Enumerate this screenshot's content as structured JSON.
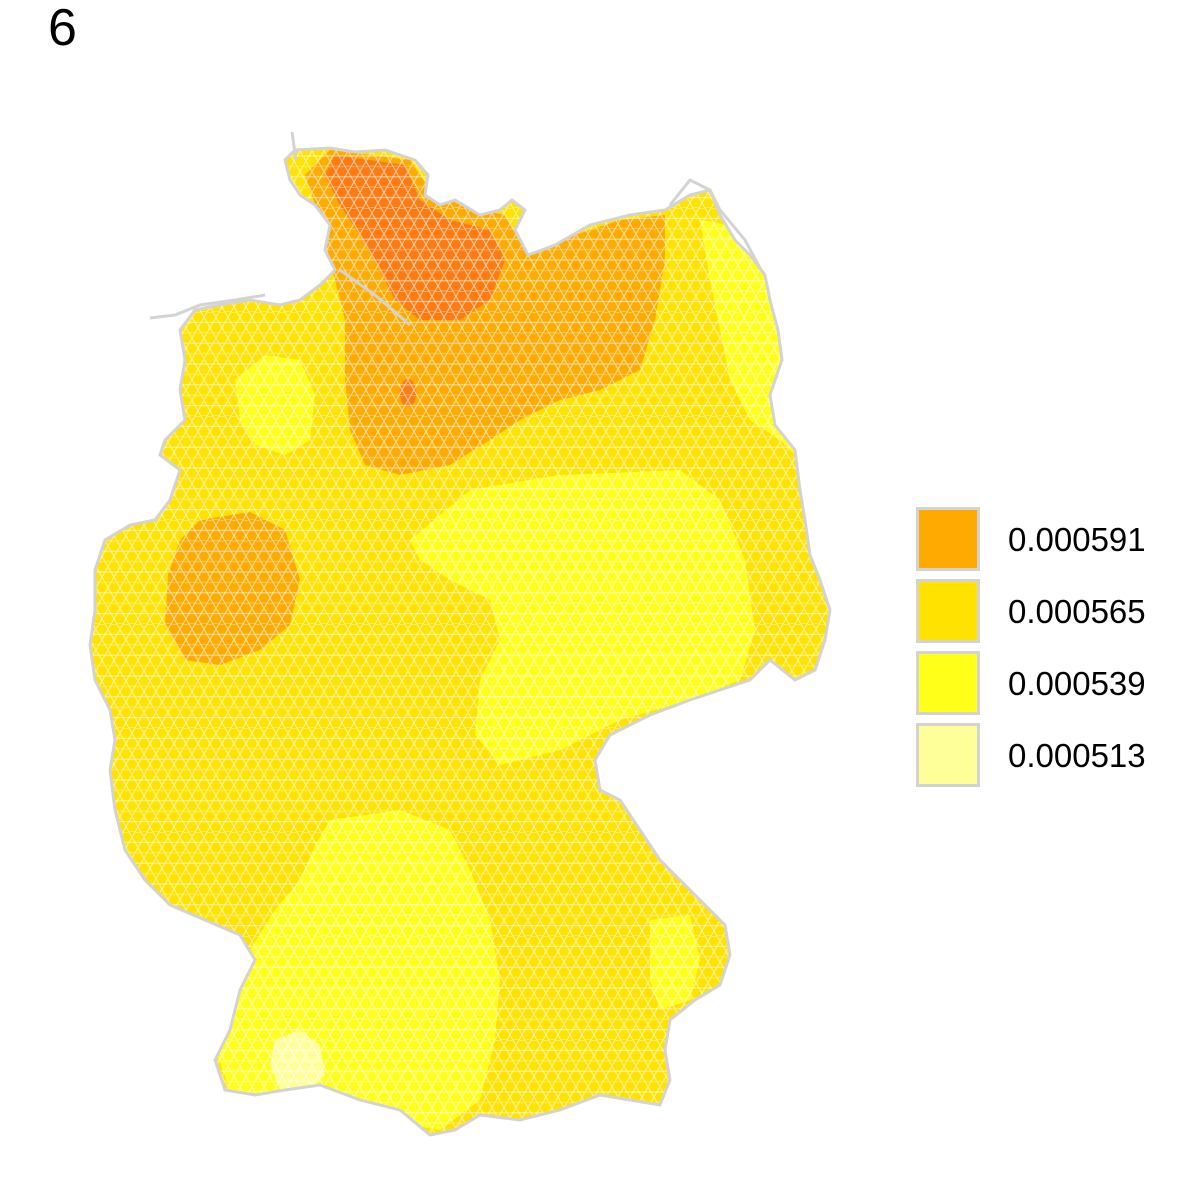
{
  "panel_label": "6",
  "legend": {
    "items": [
      {
        "label": "0.000591",
        "color": "#FFAA00"
      },
      {
        "label": "0.000565",
        "color": "#FFE200"
      },
      {
        "label": "0.000539",
        "color": "#FFFF19"
      },
      {
        "label": "0.000513",
        "color": "#FFFF99"
      }
    ]
  },
  "map": {
    "region": "Germany",
    "cell_shape": "hexagon",
    "border_color": "#D3D3D3",
    "peak_color": "#FF7A10"
  }
}
